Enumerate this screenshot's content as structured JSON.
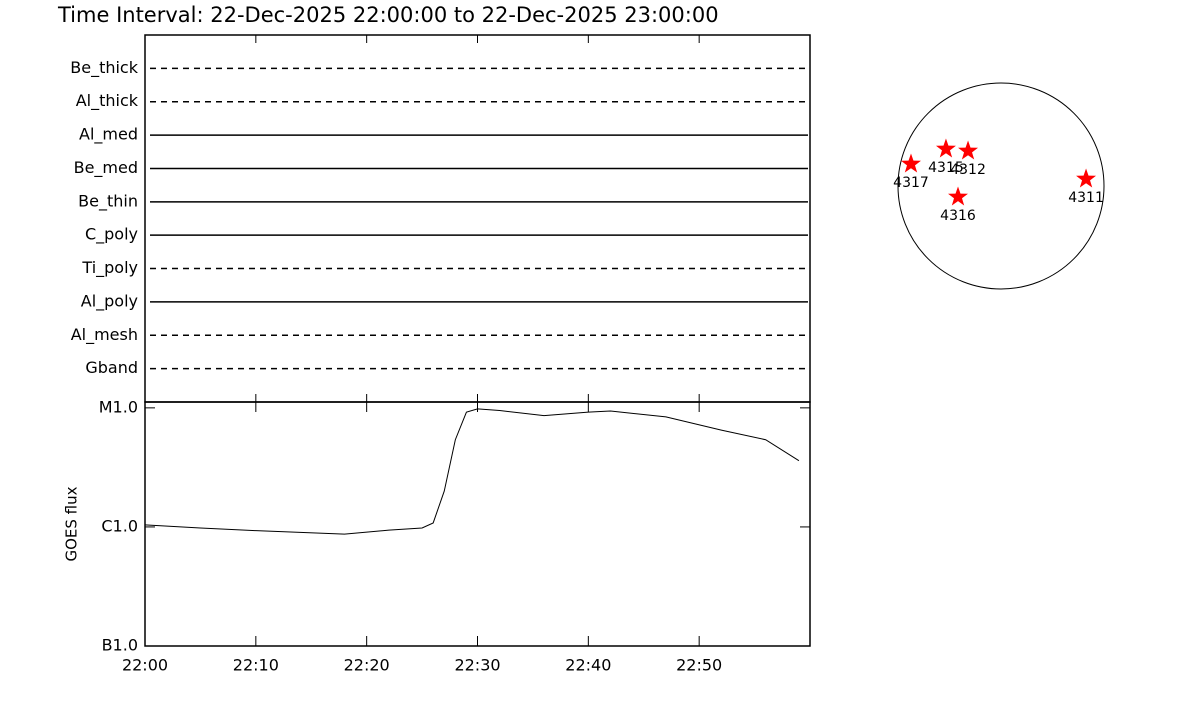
{
  "chart_data": [
    {
      "type": "status",
      "title": "Time Interval: 22-Dec-2025 22:00:00 to 22-Dec-2025 23:00:00",
      "categories": [
        "Be_thick",
        "Al_thick",
        "Al_med",
        "Be_med",
        "Be_thin",
        "C_poly",
        "Ti_poly",
        "Al_poly",
        "Al_mesh",
        "Gband"
      ],
      "styles": [
        "dashed",
        "dashed",
        "solid",
        "solid",
        "solid",
        "solid",
        "dashed",
        "solid",
        "dashed",
        "dashed"
      ],
      "xlim": [
        "22:00",
        "23:00"
      ],
      "xticks": [
        "22:00",
        "22:10",
        "22:20",
        "22:30",
        "22:40",
        "22:50"
      ]
    },
    {
      "type": "line",
      "ylabel": "GOES flux",
      "log": true,
      "xlim": [
        "22:00",
        "23:00"
      ],
      "xticks": [
        "22:00",
        "22:10",
        "22:20",
        "22:30",
        "22:40",
        "22:50"
      ],
      "ylim": [
        1e-07,
        1.12e-05
      ],
      "yticks": [
        {
          "value": 1e-07,
          "label": "B1.0"
        },
        {
          "value": 1e-06,
          "label": "C1.0"
        },
        {
          "value": 1e-05,
          "label": "M1.0"
        }
      ],
      "series": [
        {
          "name": "GOES",
          "color": "#000000",
          "x": [
            "22:00",
            "22:05",
            "22:10",
            "22:14",
            "22:18",
            "22:22",
            "22:25",
            "22:26",
            "22:27",
            "22:28",
            "22:29",
            "22:30",
            "22:32",
            "22:36",
            "22:40",
            "22:42",
            "22:47",
            "22:52",
            "22:56",
            "22:59"
          ],
          "values": [
            1.04e-06,
            9.8e-07,
            9.3e-07,
            9e-07,
            8.7e-07,
            9.4e-07,
            9.8e-07,
            1.08e-06,
            2e-06,
            5.4e-06,
            9.2e-06,
            9.8e-06,
            9.5e-06,
            8.6e-06,
            9.2e-06,
            9.4e-06,
            8.4e-06,
            6.5e-06,
            5.4e-06,
            3.6e-06
          ]
        }
      ]
    },
    {
      "type": "disk",
      "color": "#ff0000",
      "xlim": [
        -975,
        975
      ],
      "ylim": [
        -975,
        975
      ],
      "labels": [
        "4317",
        "4315",
        "4312",
        "4316",
        "4311"
      ],
      "x": [
        -852,
        -521,
        -312,
        -407,
        805
      ],
      "values": [
        208,
        350,
        331,
        -104,
        66
      ]
    }
  ]
}
